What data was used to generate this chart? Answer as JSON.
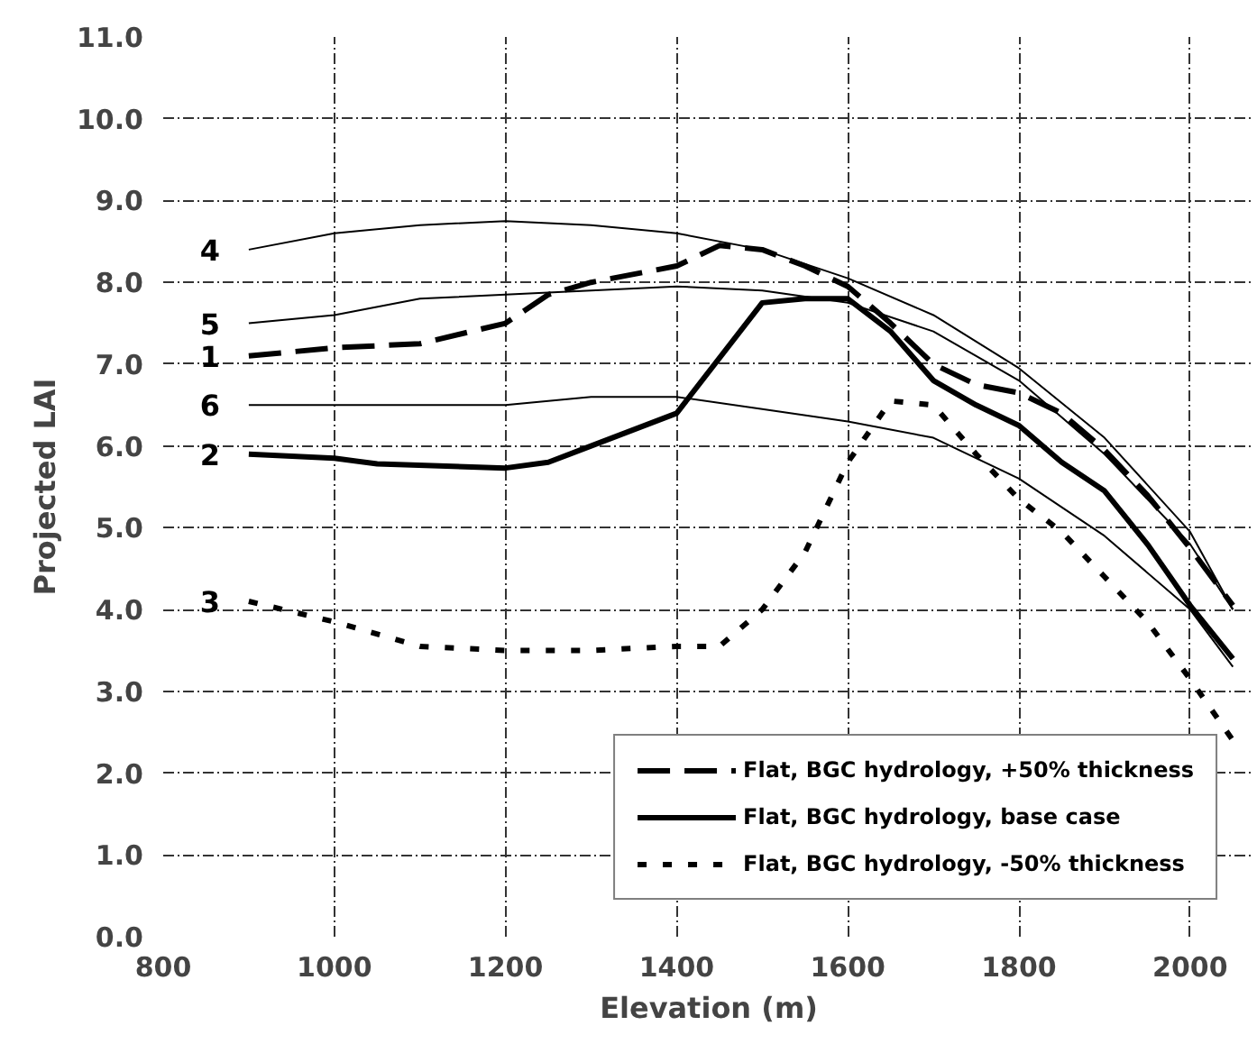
{
  "chart_data": {
    "type": "line",
    "xlabel": "Elevation (m)",
    "ylabel": "Projected LAI",
    "xlim": [
      800,
      2075
    ],
    "xticks": [
      800,
      1000,
      1200,
      1400,
      1600,
      1800,
      2000
    ],
    "ylim": [
      0,
      11
    ],
    "yticks": [
      {
        "value": 0,
        "label": "0.0"
      },
      {
        "value": 1,
        "label": "1.0"
      },
      {
        "value": 2,
        "label": "2.0"
      },
      {
        "value": 3,
        "label": "3.0"
      },
      {
        "value": 4,
        "label": "4.0"
      },
      {
        "value": 5,
        "label": "5.0"
      },
      {
        "value": 6,
        "label": "6.0"
      },
      {
        "value": 7,
        "label": "7.0"
      },
      {
        "value": 8,
        "label": "8.0"
      },
      {
        "value": 9,
        "label": "9.0"
      },
      {
        "value": 10,
        "label": "10.0"
      },
      {
        "value": 11,
        "label": "11.0"
      }
    ],
    "grid": true,
    "legend": "bottom right",
    "series": [
      {
        "name": "Flat, BGC hydrology, +50% thickness",
        "color": "#000000",
        "line_style": "dashed",
        "x": [
          900,
          1000,
          1100,
          1200,
          1250,
          1300,
          1400,
          1450,
          1500,
          1550,
          1600,
          1650,
          1700,
          1750,
          1800,
          1850,
          1900,
          1950,
          2000,
          2050
        ],
        "values": [
          7.1,
          7.2,
          7.25,
          7.5,
          7.85,
          8.0,
          8.2,
          8.45,
          8.4,
          8.2,
          7.95,
          7.5,
          7.0,
          6.75,
          6.65,
          6.4,
          5.95,
          5.4,
          4.75,
          4.05
        ]
      },
      {
        "name": "Flat, BGC hydrology, base case",
        "color": "#000000",
        "line_style": "solid",
        "x": [
          900,
          1000,
          1050,
          1200,
          1250,
          1300,
          1400,
          1500,
          1550,
          1600,
          1650,
          1700,
          1750,
          1800,
          1850,
          1900,
          1950,
          2000,
          2050
        ],
        "values": [
          5.9,
          5.85,
          5.78,
          5.73,
          5.8,
          6.0,
          6.4,
          7.75,
          7.8,
          7.8,
          7.4,
          6.8,
          6.5,
          6.25,
          5.8,
          5.45,
          4.8,
          4.05,
          3.4
        ]
      },
      {
        "name": "Flat, BGC hydrology, -50% thickness",
        "color": "#000000",
        "line_style": "dotted",
        "x": [
          900,
          1000,
          1100,
          1200,
          1300,
          1400,
          1450,
          1500,
          1550,
          1600,
          1650,
          1700,
          1750,
          1800,
          1850,
          1900,
          1950,
          2000,
          2050
        ],
        "values": [
          4.1,
          3.85,
          3.55,
          3.5,
          3.5,
          3.55,
          3.55,
          4.0,
          4.7,
          5.8,
          6.55,
          6.5,
          5.9,
          5.35,
          4.95,
          4.4,
          3.85,
          3.15,
          2.4
        ]
      },
      {
        "color": "#000000",
        "line_style": "solid",
        "x": [
          900,
          1000,
          1100,
          1200,
          1300,
          1400,
          1500,
          1600,
          1700,
          1800,
          1900,
          2000,
          2050
        ],
        "values": [
          8.4,
          8.6,
          8.7,
          8.75,
          8.7,
          8.6,
          8.4,
          8.05,
          7.6,
          6.95,
          6.1,
          4.95,
          4.0
        ]
      },
      {
        "color": "#000000",
        "line_style": "solid",
        "x": [
          900,
          1000,
          1100,
          1200,
          1300,
          1400,
          1500,
          1600,
          1700,
          1800,
          1900,
          2000,
          2050
        ],
        "values": [
          7.5,
          7.6,
          7.8,
          7.85,
          7.9,
          7.95,
          7.9,
          7.75,
          7.4,
          6.8,
          5.9,
          4.8,
          4.0
        ]
      },
      {
        "color": "#000000",
        "line_style": "solid",
        "x": [
          900,
          1000,
          1200,
          1300,
          1400,
          1500,
          1600,
          1700,
          1800,
          1900,
          2000,
          2050
        ],
        "values": [
          6.5,
          6.5,
          6.5,
          6.6,
          6.6,
          6.45,
          6.3,
          6.1,
          5.6,
          4.9,
          4.0,
          3.3
        ]
      }
    ],
    "annotations": [
      "1",
      "2",
      "3",
      "4",
      "5",
      "6"
    ]
  }
}
